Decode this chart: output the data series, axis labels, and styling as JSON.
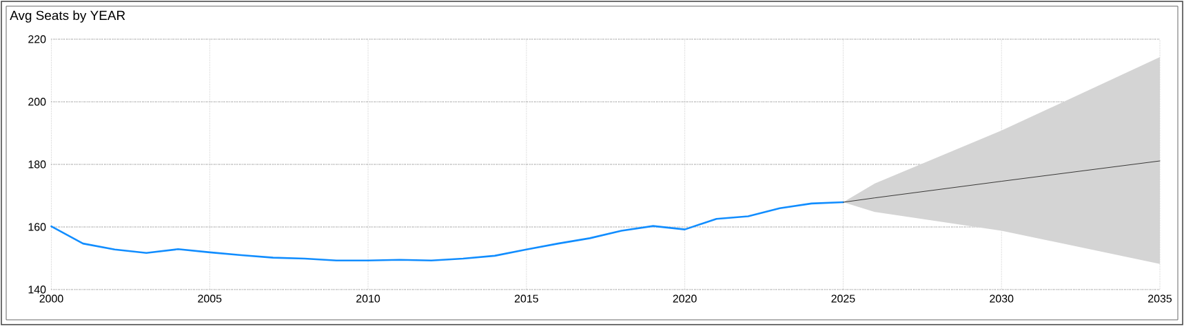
{
  "chart_data": {
    "type": "line",
    "title": "Avg Seats by YEAR",
    "series": [
      {
        "color": "#118dff",
        "x": [
          2000,
          2001,
          2002,
          2003,
          2004,
          2005,
          2006,
          2007,
          2008,
          2009,
          2010,
          2011,
          2012,
          2013,
          2014,
          2015,
          2016,
          2017,
          2018,
          2019,
          2020,
          2021,
          2022,
          2023,
          2024,
          2025
        ],
        "values": [
          160.2,
          154.7,
          152.8,
          151.7,
          152.9,
          151.9,
          151,
          150.2,
          149.9,
          149.3,
          149.3,
          149.5,
          149.3,
          149.9,
          150.8,
          152.8,
          154.7,
          156.4,
          158.8,
          160.3,
          159.2,
          162.6,
          163.4,
          166,
          167.5,
          167.9
        ]
      },
      {
        "color": "#252423",
        "x": [
          2025,
          2026,
          2030,
          2035
        ],
        "values": [
          167.9,
          169.3,
          174.6,
          181.1
        ],
        "lower": [
          167.9,
          164.8,
          158.8,
          148.2
        ],
        "upper": [
          167.9,
          173.9,
          190.8,
          214.3
        ]
      }
    ],
    "xlim": [
      2000,
      2035
    ],
    "ylim": [
      140,
      220
    ],
    "xticks": [
      2000,
      2005,
      2010,
      2015,
      2020,
      2025,
      2030,
      2035
    ],
    "yticks": [
      140,
      160,
      180,
      200,
      220
    ],
    "grid": true
  }
}
